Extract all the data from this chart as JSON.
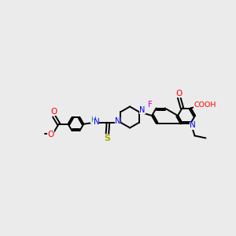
{
  "background_color": "#ebebeb",
  "atom_colors": {
    "N": "#0000ff",
    "O": "#ff0000",
    "F": "#cc00cc",
    "S": "#aaaa00",
    "H": "#008888",
    "C": "#000000"
  },
  "figsize": [
    3.0,
    3.0
  ],
  "dpi": 100,
  "bond_lw": 1.4,
  "font_size": 7.0
}
